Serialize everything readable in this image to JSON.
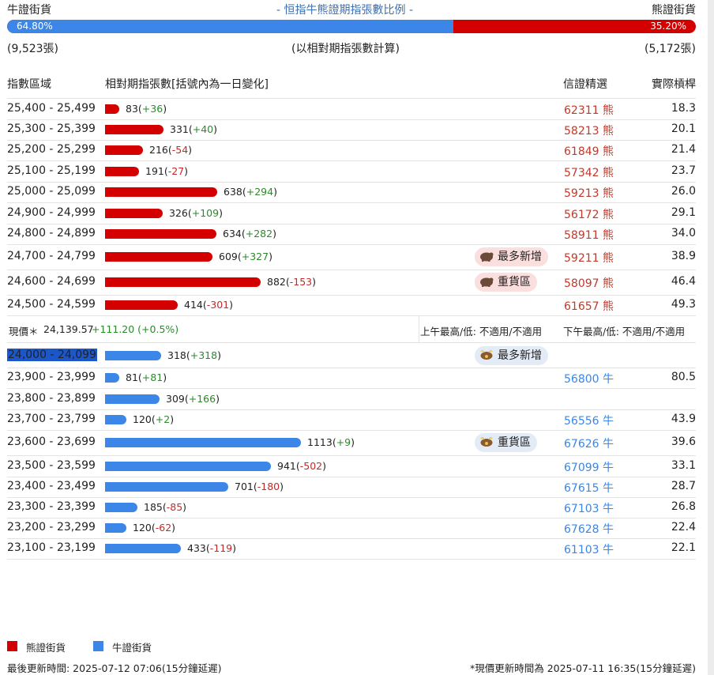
{
  "header": {
    "bull_label": "牛證街貨",
    "title": "- 恒指牛熊證期指張數比例 -",
    "bear_label": "熊證街貨",
    "bull_pct": "64.80%",
    "bear_pct": "35.20%",
    "bull_count": "(9,523張)",
    "note": "(以相對期指張數計算)",
    "bear_count": "(5,172張)"
  },
  "columns": {
    "range": "指數區域",
    "contracts": "相對期指張數[括號內為一日變化]",
    "pick": "信證精選",
    "actual": "實際槓桿"
  },
  "price": {
    "label": "現價＊",
    "value": "24,139.57",
    "change": "+111.20 (+0.5%)",
    "am": "上午最高/低: 不適用/不適用",
    "pm": "下午最高/低: 不適用/不適用"
  },
  "colors": {
    "bear": "#d40000",
    "bull": "#3b86e6"
  },
  "chart_data": {
    "type": "bar",
    "title": "恒指牛熊證期指張數比例",
    "xlabel": "",
    "ylabel": "",
    "bull_ratio": 64.8,
    "bear_ratio": 35.2,
    "bear_rows": [
      {
        "range": "25,400 - 25,499",
        "value": 83,
        "change": "+36",
        "ws": "62311 熊",
        "lev": "18.3",
        "badge": ""
      },
      {
        "range": "25,300 - 25,399",
        "value": 331,
        "change": "+40",
        "ws": "58213 熊",
        "lev": "20.1",
        "badge": ""
      },
      {
        "range": "25,200 - 25,299",
        "value": 216,
        "change": "-54",
        "ws": "61849 熊",
        "lev": "21.4",
        "badge": ""
      },
      {
        "range": "25,100 - 25,199",
        "value": 191,
        "change": "-27",
        "ws": "57342 熊",
        "lev": "23.7",
        "badge": ""
      },
      {
        "range": "25,000 - 25,099",
        "value": 638,
        "change": "+294",
        "ws": "59213 熊",
        "lev": "26.0",
        "badge": ""
      },
      {
        "range": "24,900 - 24,999",
        "value": 326,
        "change": "+109",
        "ws": "56172 熊",
        "lev": "29.1",
        "badge": ""
      },
      {
        "range": "24,800 - 24,899",
        "value": 634,
        "change": "+282",
        "ws": "58911 熊",
        "lev": "34.0",
        "badge": ""
      },
      {
        "range": "24,700 - 24,799",
        "value": 609,
        "change": "+327",
        "ws": "59211 熊",
        "lev": "38.9",
        "badge": "最多新增"
      },
      {
        "range": "24,600 - 24,699",
        "value": 882,
        "change": "-153",
        "ws": "58097 熊",
        "lev": "46.4",
        "badge": "重貨區"
      },
      {
        "range": "24,500 - 24,599",
        "value": 414,
        "change": "-301",
        "ws": "61657 熊",
        "lev": "49.3",
        "badge": ""
      }
    ],
    "bull_rows": [
      {
        "range": "24,000 - 24,099",
        "value": 318,
        "change": "+318",
        "ws": "",
        "lev": "",
        "badge": "最多新增"
      },
      {
        "range": "23,900 - 23,999",
        "value": 81,
        "change": "+81",
        "ws": "56800 牛",
        "lev": "80.5",
        "badge": ""
      },
      {
        "range": "23,800 - 23,899",
        "value": 309,
        "change": "+166",
        "ws": "",
        "lev": "",
        "badge": ""
      },
      {
        "range": "23,700 - 23,799",
        "value": 120,
        "change": "+2",
        "ws": "56556 牛",
        "lev": "43.9",
        "badge": ""
      },
      {
        "range": "23,600 - 23,699",
        "value": 1113,
        "change": "+9",
        "ws": "67626 牛",
        "lev": "39.6",
        "badge": "重貨區"
      },
      {
        "range": "23,500 - 23,599",
        "value": 941,
        "change": "-502",
        "ws": "67099 牛",
        "lev": "33.1",
        "badge": ""
      },
      {
        "range": "23,400 - 23,499",
        "value": 701,
        "change": "-180",
        "ws": "67615 牛",
        "lev": "28.7",
        "badge": ""
      },
      {
        "range": "23,300 - 23,399",
        "value": 185,
        "change": "-85",
        "ws": "67103 牛",
        "lev": "26.8",
        "badge": ""
      },
      {
        "range": "23,200 - 23,299",
        "value": 120,
        "change": "-62",
        "ws": "67628 牛",
        "lev": "22.4",
        "badge": ""
      },
      {
        "range": "23,100 - 23,199",
        "value": 433,
        "change": "-119",
        "ws": "61103 牛",
        "lev": "22.1",
        "badge": ""
      }
    ]
  },
  "legend": {
    "bear": "熊證街貨",
    "bull": "牛證街貨"
  },
  "footer": {
    "updated": "最後更新時間: 2025-07-12 07:06(15分鐘延遲)",
    "price_updated": "*現價更新時間為 2025-07-11 16:35(15分鐘延遲)"
  }
}
